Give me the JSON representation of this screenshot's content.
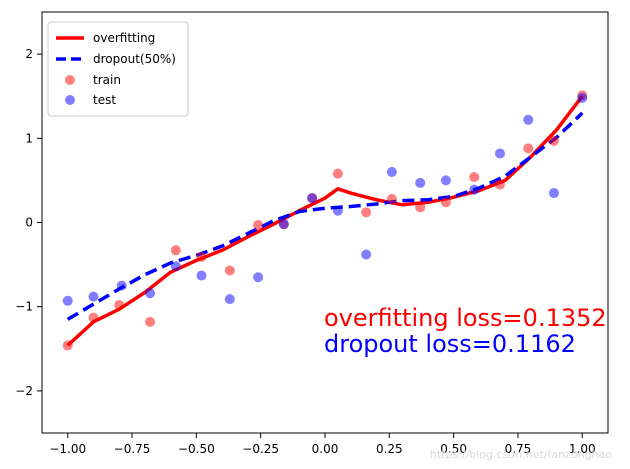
{
  "chart_data": {
    "type": "scatter",
    "xlim": [
      -1.1,
      1.1
    ],
    "ylim": [
      -2.5,
      2.5
    ],
    "xticks": [
      -1.0,
      -0.75,
      -0.5,
      -0.25,
      0.0,
      0.25,
      0.5,
      0.75,
      1.0
    ],
    "xtick_labels": [
      "−1.00",
      "−0.75",
      "−0.50",
      "−0.25",
      "0.00",
      "0.25",
      "0.50",
      "0.75",
      "1.00"
    ],
    "yticks": [
      -2,
      -1,
      0,
      1,
      2
    ],
    "ytick_labels": [
      "−2",
      "−1",
      "0",
      "1",
      "2"
    ],
    "grid": false,
    "legend_placement": "top-left",
    "series": [
      {
        "name": "overfitting",
        "kind": "line",
        "style": "solid",
        "color": "#ff0000",
        "x": [
          -1.0,
          -0.9,
          -0.8,
          -0.7,
          -0.6,
          -0.5,
          -0.4,
          -0.3,
          -0.2,
          -0.1,
          0.0,
          0.05,
          0.1,
          0.2,
          0.3,
          0.4,
          0.5,
          0.6,
          0.7,
          0.8,
          0.9,
          1.0
        ],
        "y": [
          -1.46,
          -1.18,
          -1.03,
          -0.83,
          -0.59,
          -0.45,
          -0.33,
          -0.17,
          -0.02,
          0.14,
          0.29,
          0.4,
          0.35,
          0.27,
          0.21,
          0.24,
          0.3,
          0.38,
          0.5,
          0.78,
          1.1,
          1.5
        ]
      },
      {
        "name": "dropout(50%)",
        "kind": "line",
        "style": "dashed",
        "color": "#0000ff",
        "x": [
          -1.0,
          -0.9,
          -0.8,
          -0.7,
          -0.6,
          -0.5,
          -0.4,
          -0.3,
          -0.2,
          -0.1,
          0.0,
          0.1,
          0.2,
          0.3,
          0.4,
          0.5,
          0.6,
          0.7,
          0.8,
          0.9,
          1.0
        ],
        "y": [
          -1.15,
          -0.97,
          -0.79,
          -0.62,
          -0.48,
          -0.39,
          -0.28,
          -0.13,
          0.02,
          0.13,
          0.17,
          0.19,
          0.22,
          0.26,
          0.27,
          0.31,
          0.41,
          0.55,
          0.78,
          1.01,
          1.3
        ]
      },
      {
        "name": "train",
        "kind": "scatter",
        "color": "#ff0000",
        "x": [
          -1.0,
          -0.9,
          -0.8,
          -0.68,
          -0.58,
          -0.48,
          -0.37,
          -0.26,
          -0.16,
          -0.05,
          0.05,
          0.16,
          0.26,
          0.37,
          0.47,
          0.58,
          0.68,
          0.79,
          0.89,
          1.0
        ],
        "y": [
          -1.46,
          -1.13,
          -0.98,
          -1.18,
          -0.33,
          -0.41,
          -0.57,
          -0.03,
          -0.02,
          0.29,
          0.58,
          0.12,
          0.28,
          0.18,
          0.24,
          0.54,
          0.45,
          0.88,
          0.97,
          1.51
        ]
      },
      {
        "name": "test",
        "kind": "scatter",
        "color": "#0000ff",
        "x": [
          -1.0,
          -0.9,
          -0.79,
          -0.68,
          -0.58,
          -0.48,
          -0.37,
          -0.26,
          -0.16,
          -0.05,
          0.05,
          0.16,
          0.26,
          0.37,
          0.47,
          0.58,
          0.68,
          0.79,
          0.89,
          1.0
        ],
        "y": [
          -0.93,
          -0.88,
          -0.75,
          -0.84,
          -0.52,
          -0.63,
          -0.91,
          -0.65,
          -0.02,
          0.29,
          0.14,
          -0.38,
          0.6,
          0.47,
          0.5,
          0.39,
          0.82,
          1.22,
          0.35,
          1.48
        ]
      }
    ],
    "annotations": [
      {
        "text": "overfitting loss=0.1352",
        "color": "#ff0000"
      },
      {
        "text": "dropout loss=0.1162",
        "color": "#0000ff"
      }
    ],
    "watermark": "https://blog.csdn.net/fanzonghao"
  }
}
